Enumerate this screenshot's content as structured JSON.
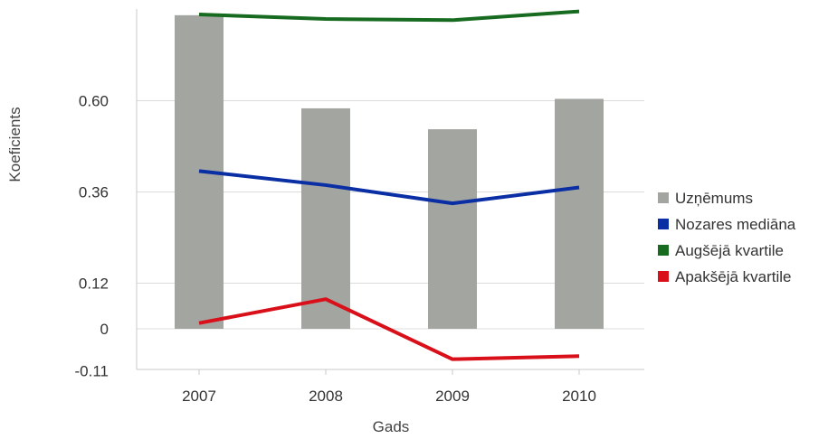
{
  "chart_data": {
    "type": "bar",
    "title": "",
    "xlabel": "Gads",
    "ylabel": "Koeficients",
    "categories": [
      "2007",
      "2008",
      "2009",
      "2010"
    ],
    "ylim": [
      -0.11,
      0.84
    ],
    "yticks": [
      -0.11,
      0,
      0.12,
      0.36,
      0.6
    ],
    "ytick_labels": [
      "-0.11",
      "0",
      "0.12",
      "0.36",
      "0.60"
    ],
    "grid": true,
    "legend_position": "right",
    "series": [
      {
        "name": "Uzņēmums",
        "kind": "bar",
        "color": "#a3a5a0",
        "values": [
          0.825,
          0.58,
          0.525,
          0.605
        ]
      },
      {
        "name": "Nozares mediāna",
        "kind": "line",
        "color": "#0a2ea4",
        "values": [
          0.415,
          0.378,
          0.33,
          0.372
        ]
      },
      {
        "name": "Augšējā kvartile",
        "kind": "line",
        "color": "#166b20",
        "values": [
          0.827,
          0.815,
          0.812,
          0.835
        ]
      },
      {
        "name": "Apakšējā kvartile",
        "kind": "line",
        "color": "#d90f1a",
        "values": [
          0.015,
          0.078,
          -0.08,
          -0.072
        ]
      }
    ]
  }
}
